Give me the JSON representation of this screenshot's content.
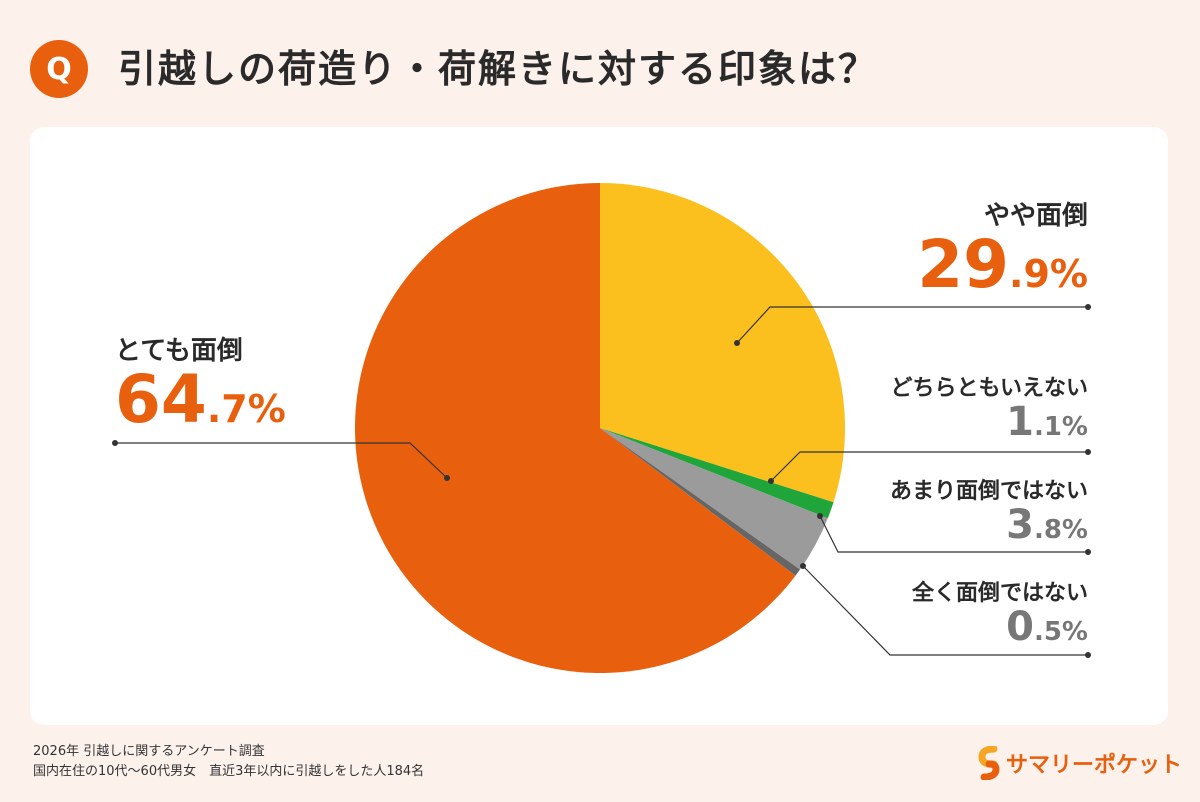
{
  "header": {
    "badge": "Q",
    "title": "引越しの荷造り・荷解きに対する印象は？"
  },
  "chart_data": {
    "type": "pie",
    "start": "12 o'clock, clockwise",
    "slices": [
      {
        "label": "やや面倒",
        "value": 29.9,
        "color": "#FBBF1E"
      },
      {
        "label": "どちらともいえない",
        "value": 1.1,
        "color": "#1FA53A"
      },
      {
        "label": "あまり面倒ではない",
        "value": 3.8,
        "color": "#9B9B9B"
      },
      {
        "label": "全く面倒ではない",
        "value": 0.5,
        "color": "#666666"
      },
      {
        "label": "とても面倒",
        "value": 64.7,
        "color": "#E8600E"
      }
    ]
  },
  "footer": {
    "line1": "2026年 引越しに関するアンケート調査",
    "line2": "国内在住の10代〜60代男女　直近3年以内に引越しをした人184名"
  },
  "logo": {
    "text": "サマリーポケット"
  }
}
